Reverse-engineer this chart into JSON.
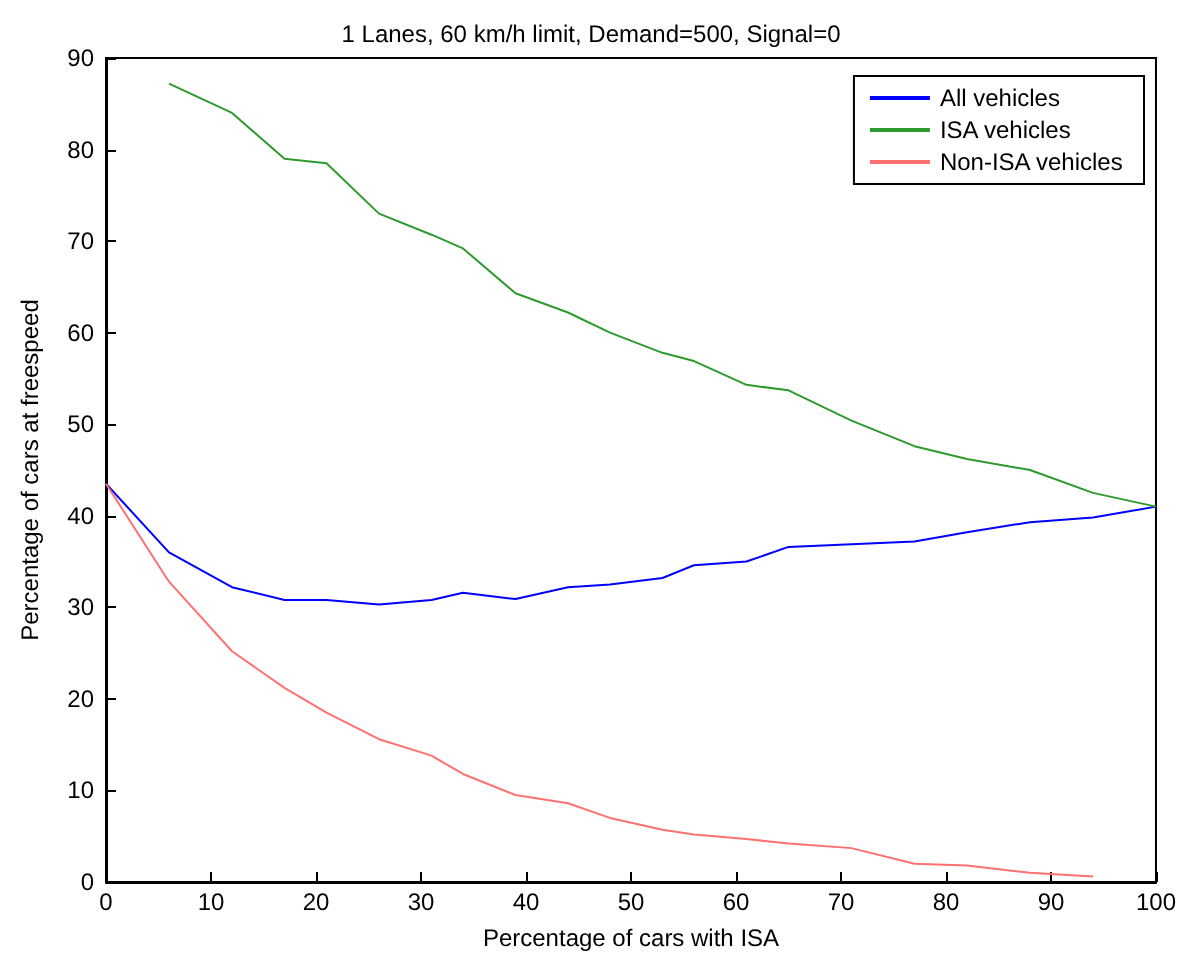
{
  "chart_data": {
    "type": "line",
    "title": "1 Lanes, 60 km/h limit, Demand=500, Signal=0",
    "xlabel": "Percentage of cars with ISA",
    "ylabel": "Percentage of cars at freespeed",
    "xlim": [
      0,
      100
    ],
    "xticks": [
      0,
      10,
      20,
      30,
      40,
      50,
      60,
      70,
      80,
      90,
      100
    ],
    "ylim": [
      0,
      90
    ],
    "yticks": [
      0,
      10,
      20,
      30,
      40,
      50,
      60,
      70,
      80,
      90
    ],
    "grid": false,
    "legend": "top right",
    "marker": "none",
    "line_style": "solid",
    "series": [
      {
        "name": "All vehicles",
        "color": "#0000ff",
        "x": [
          0,
          6,
          12,
          17,
          21,
          26,
          31,
          34,
          39,
          44,
          48,
          53,
          56,
          61,
          65,
          71,
          77,
          82,
          88,
          94,
          100
        ],
        "values": [
          43.5,
          36,
          32.2,
          30.8,
          30.8,
          30.3,
          30.8,
          31.6,
          30.9,
          32.2,
          32.5,
          33.2,
          34.6,
          35,
          36.6,
          36.9,
          37.2,
          38.2,
          39.3,
          39.8,
          41
        ]
      },
      {
        "name": "ISA vehicles",
        "color": "#2e9a2e",
        "x": [
          6,
          12,
          17,
          21,
          26,
          31,
          34,
          39,
          44,
          48,
          53,
          56,
          61,
          65,
          71,
          77,
          82,
          88,
          94,
          100
        ],
        "values": [
          87.2,
          84,
          79,
          78.5,
          73,
          70.7,
          69.2,
          64.3,
          62.2,
          60,
          57.8,
          56.9,
          54.3,
          53.7,
          50.4,
          47.6,
          46.2,
          45,
          42.5,
          41
        ]
      },
      {
        "name": "Non-ISA vehicles",
        "color": "#ff7070",
        "x": [
          0,
          6,
          12,
          17,
          21,
          26,
          31,
          34,
          39,
          44,
          48,
          53,
          56,
          61,
          65,
          71,
          77,
          82,
          88,
          94
        ],
        "values": [
          43.5,
          32.8,
          25.2,
          21.2,
          18.5,
          15.6,
          13.8,
          11.8,
          9.5,
          8.6,
          7,
          5.7,
          5.2,
          4.7,
          4.2,
          3.7,
          2,
          1.8,
          1,
          0.6
        ]
      }
    ]
  }
}
